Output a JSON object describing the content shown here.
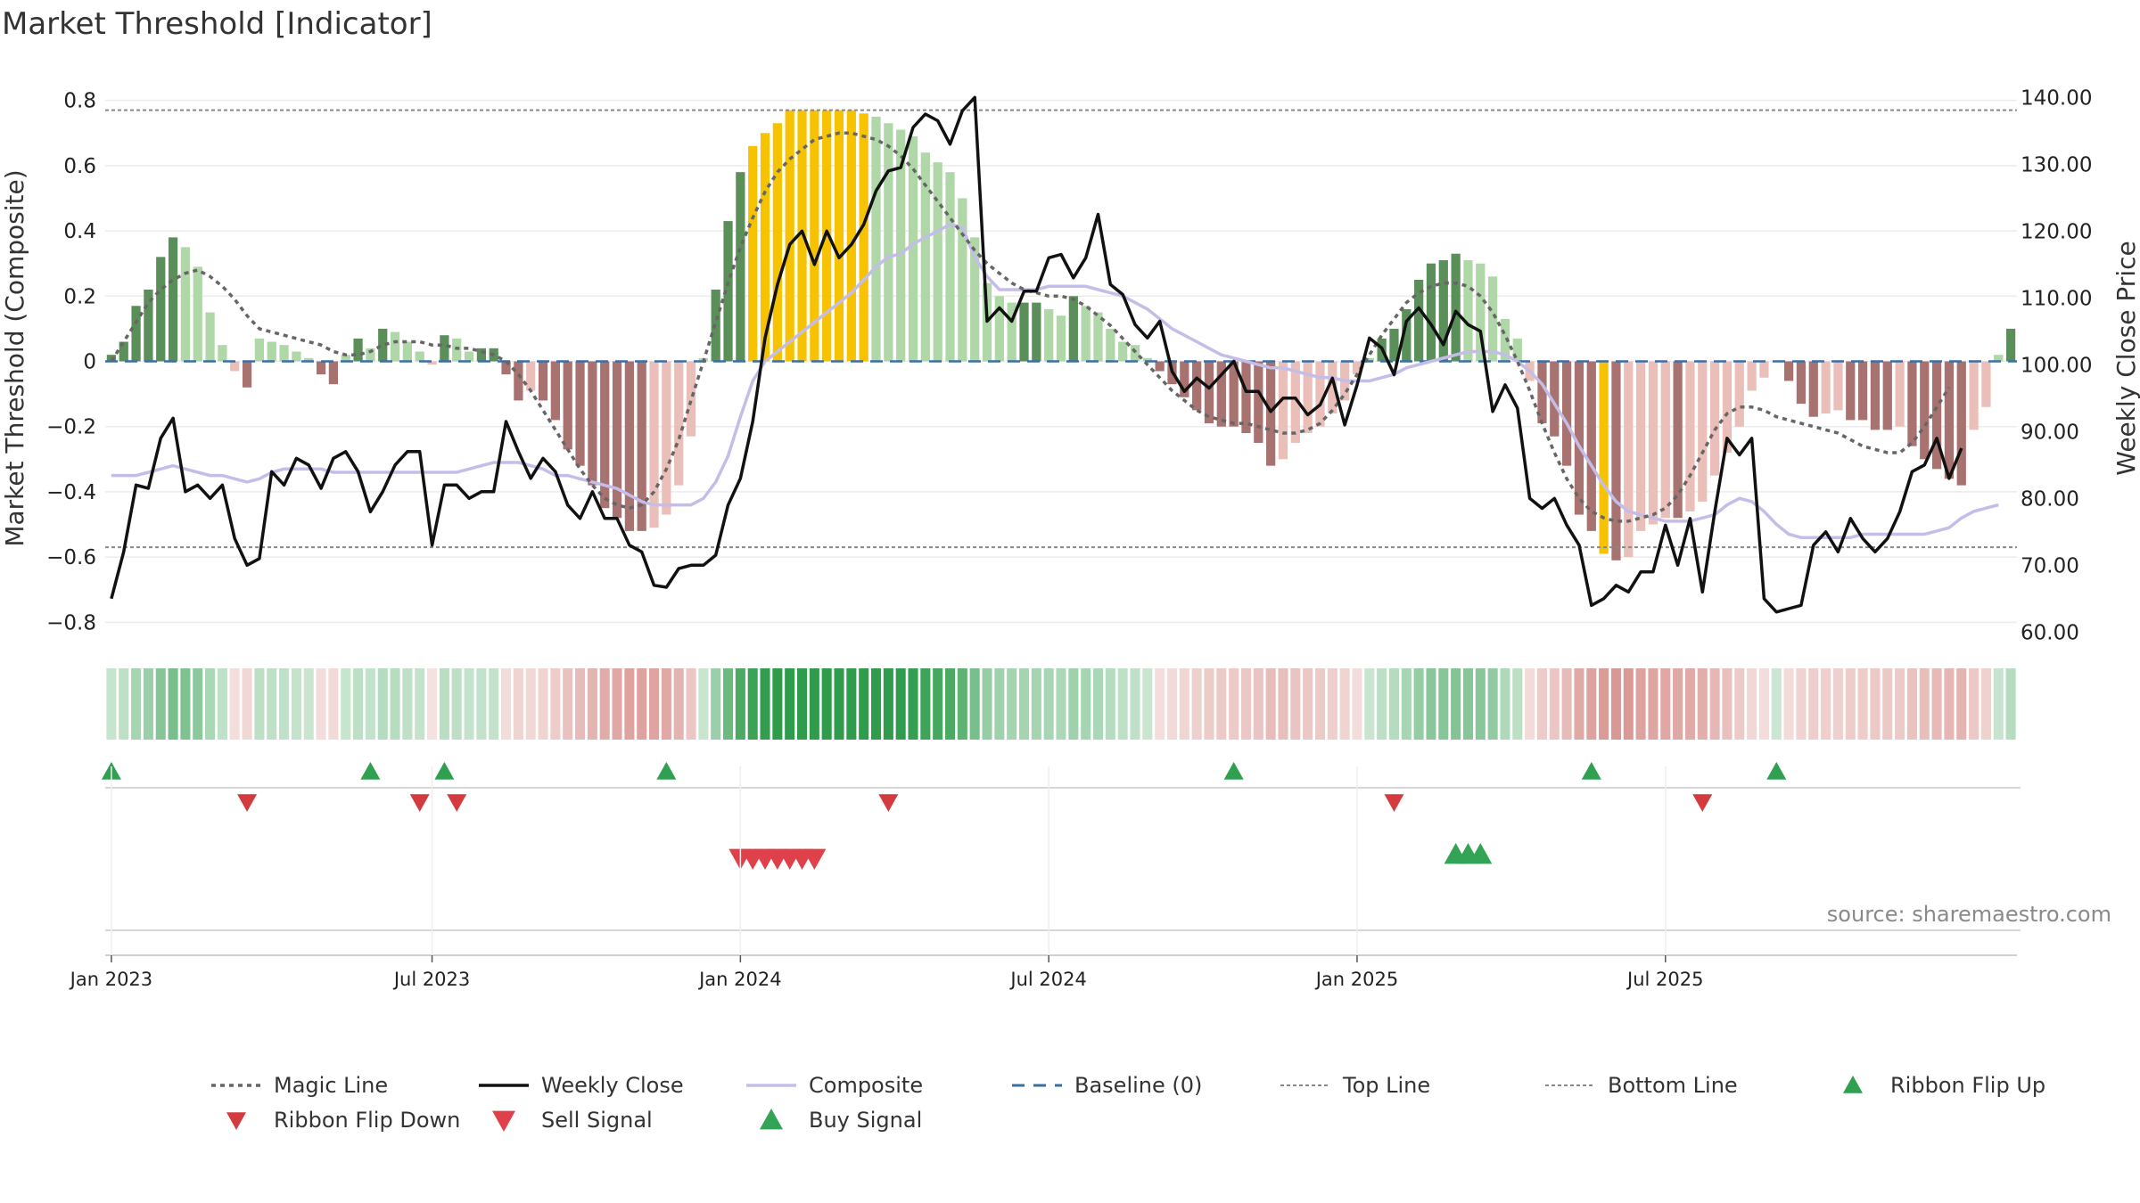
{
  "chart_data": {
    "type": "bar",
    "title": "Market Threshold [Indicator]",
    "source": "source: sharemaestro.com",
    "y_left_label": "Market Threshold (Composite)",
    "y_right_label": "Weekly Close Price",
    "y_left_ticks": [
      "0.8",
      "0.6",
      "0.4",
      "0.2",
      "0",
      "−0.2",
      "−0.4",
      "−0.6",
      "−0.8"
    ],
    "y_left_tick_values": [
      0.8,
      0.6,
      0.4,
      0.2,
      0,
      -0.2,
      -0.4,
      -0.6,
      -0.8
    ],
    "y_right_ticks": [
      "140.00",
      "130.00",
      "120.00",
      "110.00",
      "100.00",
      "90.00",
      "80.00",
      "70.00",
      "60.00"
    ],
    "y_right_tick_values": [
      140,
      130,
      120,
      110,
      100,
      90,
      80,
      70,
      60
    ],
    "ylim_left": [
      -0.84,
      0.84
    ],
    "ylim_right": [
      59.5,
      141.5
    ],
    "x_tick_labels": [
      "Jan 2023",
      "Jul 2023",
      "Jan 2024",
      "Jul 2024",
      "Jan 2025",
      "Jul 2025"
    ],
    "x_tick_weeks": [
      1,
      27,
      52,
      77,
      102,
      127
    ],
    "top_line": 0.77,
    "bottom_line": -0.57,
    "composite_bars": [
      0.02,
      0.06,
      0.17,
      0.22,
      0.32,
      0.38,
      0.35,
      0.29,
      0.15,
      0.05,
      -0.03,
      -0.08,
      0.07,
      0.06,
      0.05,
      0.03,
      0.01,
      -0.04,
      -0.07,
      0.02,
      0.07,
      0.04,
      0.1,
      0.09,
      0.06,
      0.03,
      -0.01,
      0.08,
      0.07,
      0.03,
      0.04,
      0.04,
      -0.04,
      -0.12,
      -0.09,
      -0.12,
      -0.18,
      -0.27,
      -0.32,
      -0.38,
      -0.45,
      -0.48,
      -0.52,
      -0.52,
      -0.51,
      -0.47,
      -0.38,
      -0.23,
      0.01,
      0.22,
      0.43,
      0.58,
      0.66,
      0.7,
      0.73,
      0.77,
      0.77,
      0.77,
      0.77,
      0.77,
      0.77,
      0.76,
      0.75,
      0.73,
      0.71,
      0.69,
      0.64,
      0.61,
      0.58,
      0.5,
      0.38,
      0.24,
      0.2,
      0.18,
      0.18,
      0.18,
      0.16,
      0.14,
      0.2,
      0.17,
      0.15,
      0.1,
      0.06,
      0.05,
      0.01,
      -0.03,
      -0.07,
      -0.11,
      -0.15,
      -0.19,
      -0.2,
      -0.2,
      -0.22,
      -0.25,
      -0.32,
      -0.3,
      -0.25,
      -0.22,
      -0.2,
      -0.16,
      -0.12,
      -0.04,
      0.01,
      0.07,
      0.1,
      0.16,
      0.25,
      0.3,
      0.31,
      0.33,
      0.31,
      0.3,
      0.26,
      0.13,
      0.07,
      -0.06,
      -0.19,
      -0.23,
      -0.32,
      -0.47,
      -0.52,
      -0.59,
      -0.61,
      -0.6,
      -0.52,
      -0.5,
      -0.48,
      -0.48,
      -0.46,
      -0.43,
      -0.35,
      -0.28,
      -0.2,
      -0.09,
      -0.05,
      0.0,
      -0.06,
      -0.13,
      -0.17,
      -0.16,
      -0.15,
      -0.18,
      -0.18,
      -0.21,
      -0.21,
      -0.2,
      -0.26,
      -0.3,
      -0.33,
      -0.36,
      -0.38,
      -0.21,
      -0.14,
      0.02,
      0.1
    ],
    "weekly_close": [
      65,
      72,
      82,
      81.5,
      89,
      92,
      81,
      82,
      80,
      82,
      74,
      70,
      71,
      84,
      82,
      86,
      85,
      81.5,
      86,
      87,
      84,
      78,
      81,
      85,
      87,
      87,
      73,
      82,
      82,
      80,
      81,
      81,
      91.5,
      87,
      83,
      86,
      84,
      79,
      77,
      81,
      77,
      77,
      73,
      72,
      67,
      66.7,
      69.5,
      70,
      70,
      71.5,
      79,
      83,
      91.5,
      104,
      112,
      118,
      120,
      115,
      120,
      116,
      118,
      121,
      126,
      129,
      129.5,
      135.5,
      137.5,
      136.5,
      133,
      138,
      140,
      106.5,
      108.5,
      106.5,
      111,
      111,
      116,
      116.5,
      113,
      116,
      122.5,
      112,
      110.5,
      106,
      104,
      106.5,
      99,
      96,
      98,
      96.5,
      98.5,
      100.5,
      96,
      96,
      93,
      95,
      95,
      92.5,
      94,
      98,
      91,
      97,
      104,
      102.5,
      98.5,
      106.5,
      108.5,
      106,
      103,
      108,
      106,
      105,
      93,
      97,
      93.5,
      80,
      78.5,
      80,
      76,
      73,
      64,
      65,
      67,
      66,
      69,
      69,
      76,
      70,
      77,
      66,
      78,
      89,
      86.5,
      89,
      65,
      63,
      63.5,
      64,
      73,
      75,
      72,
      77,
      74,
      72,
      74,
      78,
      84,
      85,
      89,
      83,
      87.5
    ],
    "magic_line": [
      0.0,
      0.06,
      0.12,
      0.18,
      0.22,
      0.25,
      0.27,
      0.28,
      0.26,
      0.23,
      0.19,
      0.14,
      0.1,
      0.09,
      0.08,
      0.07,
      0.06,
      0.05,
      0.03,
      0.02,
      0.02,
      0.03,
      0.05,
      0.06,
      0.06,
      0.06,
      0.05,
      0.05,
      0.04,
      0.04,
      0.03,
      0.02,
      0.0,
      -0.04,
      -0.09,
      -0.15,
      -0.21,
      -0.27,
      -0.33,
      -0.38,
      -0.42,
      -0.44,
      -0.45,
      -0.44,
      -0.4,
      -0.33,
      -0.24,
      -0.12,
      0.0,
      0.12,
      0.24,
      0.35,
      0.44,
      0.52,
      0.58,
      0.62,
      0.65,
      0.68,
      0.69,
      0.7,
      0.7,
      0.69,
      0.68,
      0.66,
      0.63,
      0.59,
      0.54,
      0.49,
      0.44,
      0.39,
      0.34,
      0.3,
      0.27,
      0.24,
      0.22,
      0.21,
      0.2,
      0.2,
      0.19,
      0.17,
      0.14,
      0.11,
      0.07,
      0.03,
      -0.01,
      -0.05,
      -0.09,
      -0.12,
      -0.15,
      -0.17,
      -0.18,
      -0.19,
      -0.19,
      -0.2,
      -0.21,
      -0.22,
      -0.22,
      -0.21,
      -0.19,
      -0.15,
      -0.1,
      -0.04,
      0.02,
      0.08,
      0.13,
      0.18,
      0.21,
      0.23,
      0.24,
      0.24,
      0.23,
      0.2,
      0.15,
      0.08,
      0.0,
      -0.09,
      -0.19,
      -0.28,
      -0.36,
      -0.42,
      -0.46,
      -0.48,
      -0.49,
      -0.49,
      -0.48,
      -0.47,
      -0.45,
      -0.41,
      -0.35,
      -0.28,
      -0.21,
      -0.16,
      -0.14,
      -0.14,
      -0.15,
      -0.17,
      -0.18,
      -0.19,
      -0.2,
      -0.21,
      -0.22,
      -0.24,
      -0.26,
      -0.27,
      -0.28,
      -0.28,
      -0.25,
      -0.2,
      -0.14,
      -0.08
    ],
    "composite_line": [
      -0.35,
      -0.35,
      -0.35,
      -0.34,
      -0.33,
      -0.32,
      -0.33,
      -0.34,
      -0.35,
      -0.35,
      -0.36,
      -0.37,
      -0.36,
      -0.34,
      -0.33,
      -0.33,
      -0.33,
      -0.33,
      -0.34,
      -0.34,
      -0.34,
      -0.34,
      -0.34,
      -0.34,
      -0.34,
      -0.34,
      -0.34,
      -0.34,
      -0.34,
      -0.33,
      -0.32,
      -0.31,
      -0.31,
      -0.31,
      -0.32,
      -0.33,
      -0.35,
      -0.35,
      -0.36,
      -0.37,
      -0.38,
      -0.39,
      -0.41,
      -0.43,
      -0.44,
      -0.44,
      -0.44,
      -0.44,
      -0.42,
      -0.37,
      -0.29,
      -0.17,
      -0.06,
      0.0,
      0.03,
      0.06,
      0.09,
      0.12,
      0.15,
      0.18,
      0.21,
      0.25,
      0.29,
      0.32,
      0.33,
      0.36,
      0.38,
      0.4,
      0.42,
      0.41,
      0.32,
      0.26,
      0.22,
      0.22,
      0.22,
      0.22,
      0.23,
      0.23,
      0.23,
      0.23,
      0.22,
      0.21,
      0.2,
      0.18,
      0.16,
      0.13,
      0.1,
      0.08,
      0.06,
      0.04,
      0.02,
      0.01,
      0.0,
      -0.01,
      -0.02,
      -0.02,
      -0.03,
      -0.04,
      -0.05,
      -0.05,
      -0.06,
      -0.06,
      -0.06,
      -0.05,
      -0.04,
      -0.02,
      -0.01,
      0.0,
      0.01,
      0.02,
      0.03,
      0.03,
      0.03,
      0.02,
      0.0,
      -0.03,
      -0.07,
      -0.13,
      -0.19,
      -0.26,
      -0.32,
      -0.38,
      -0.43,
      -0.46,
      -0.47,
      -0.48,
      -0.49,
      -0.49,
      -0.49,
      -0.48,
      -0.47,
      -0.44,
      -0.42,
      -0.43,
      -0.46,
      -0.5,
      -0.53,
      -0.54,
      -0.54,
      -0.54,
      -0.54,
      -0.54,
      -0.53,
      -0.53,
      -0.53,
      -0.53,
      -0.53,
      -0.53,
      -0.52,
      -0.51,
      -0.48,
      -0.46,
      -0.45,
      -0.44
    ],
    "ribbon_flip_up_weeks": [
      1,
      22,
      28,
      46,
      92,
      121,
      136
    ],
    "ribbon_flip_down_weeks": [
      12,
      26,
      29,
      64,
      105,
      130
    ],
    "sell_signal_weeks": [
      52,
      53,
      54,
      55,
      56,
      57,
      58
    ],
    "buy_signal_weeks": [
      110,
      111,
      112
    ],
    "colors": {
      "bull_strong": "#5a8f5a",
      "bull_weak": "#afd7a8",
      "bear_strong": "#a87270",
      "bear_weak": "#ebbfb9",
      "extreme": "#f7c300",
      "weekly_close": "#111111",
      "magic_line": "#666666",
      "composite_line": "#c4bde8",
      "baseline": "#3a6ea5",
      "ribbon_up": "#2ea04f",
      "ribbon_down": "#d33b3f",
      "sell": "#e0404a",
      "buy": "#33a356"
    },
    "legend": [
      {
        "label": "Magic Line",
        "icon": "dotted-line"
      },
      {
        "label": "Weekly Close",
        "icon": "solid-line"
      },
      {
        "label": "Composite",
        "icon": "lavender-line"
      },
      {
        "label": "Baseline (0)",
        "icon": "dashed-blue-line"
      },
      {
        "label": "Top Line",
        "icon": "dotted-gray-line"
      },
      {
        "label": "Bottom Line",
        "icon": "dotted-gray-line"
      },
      {
        "label": "Ribbon Flip Up",
        "icon": "up-triangle"
      },
      {
        "label": "Ribbon Flip Down",
        "icon": "down-triangle"
      },
      {
        "label": "Sell Signal",
        "icon": "down-triangle"
      },
      {
        "label": "Buy Signal",
        "icon": "up-triangle"
      }
    ]
  }
}
